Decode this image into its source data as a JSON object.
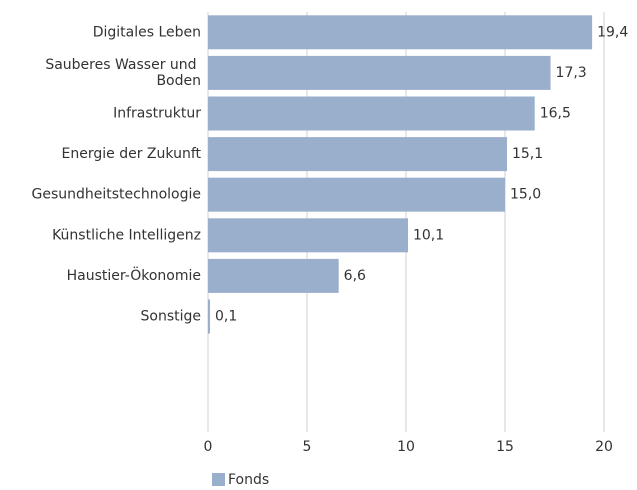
{
  "chart_data": {
    "type": "barh",
    "categories": [
      "Digitales Leben",
      "Sauberes Wasser und Boden",
      "Infrastruktur",
      "Energie der Zukunft",
      "Gesundheitstechnologie",
      "Künstliche Intelligenz",
      "Haustier-Ökonomie",
      "Sonstige"
    ],
    "series": [
      {
        "name": "Fonds",
        "color": "#9aafcc",
        "values": [
          19.4,
          17.3,
          16.5,
          15.1,
          15.0,
          10.1,
          6.6,
          0.1
        ],
        "value_labels": [
          "19,4",
          "17,3",
          "16,5",
          "15,1",
          "15,0",
          "10,1",
          "6,6",
          "0,1"
        ]
      }
    ],
    "xlim": [
      0,
      20
    ],
    "xticks": [
      0,
      5,
      10,
      15,
      20
    ],
    "grid": true,
    "legend": "bottom"
  }
}
